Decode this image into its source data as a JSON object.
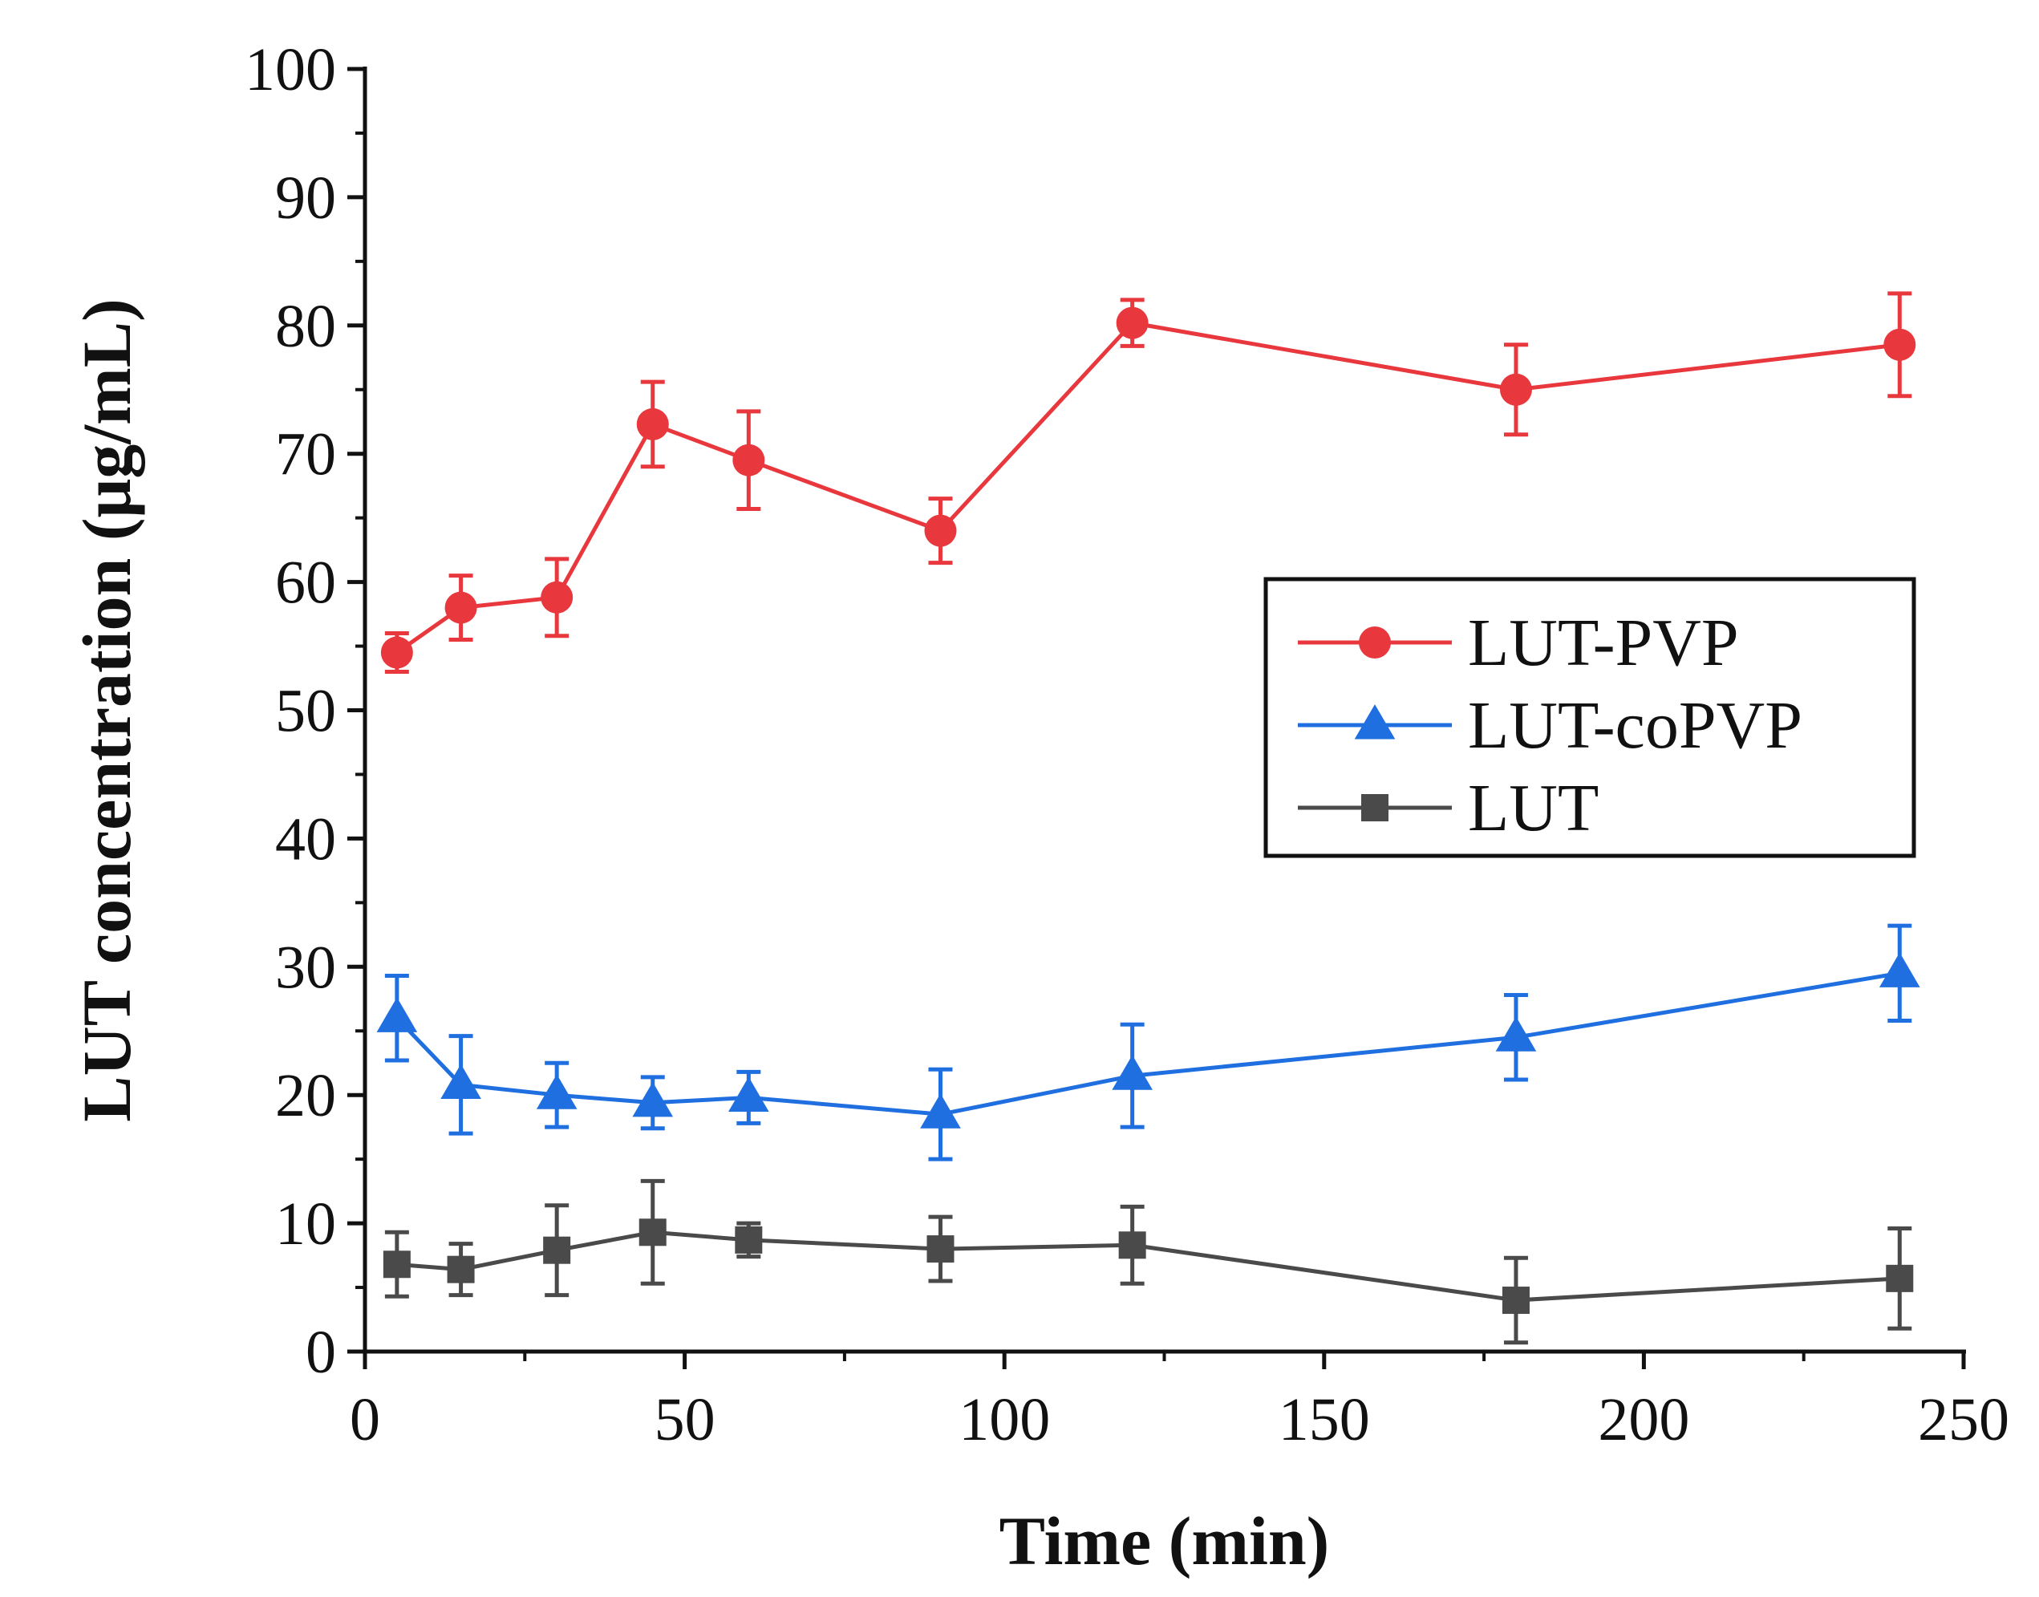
{
  "chart_data": {
    "type": "line",
    "title": "",
    "xlabel": "Time (min)",
    "ylabel": "LUT concentration (μg/mL)",
    "xlim": [
      0,
      250
    ],
    "ylim": [
      0,
      100
    ],
    "xticks": [
      0,
      50,
      100,
      150,
      200,
      250
    ],
    "yticks": [
      0,
      10,
      20,
      30,
      40,
      50,
      60,
      70,
      80,
      90,
      100
    ],
    "x": [
      5,
      15,
      30,
      45,
      60,
      90,
      120,
      180,
      240
    ],
    "legend_position": "right-middle",
    "series": [
      {
        "name": "LUT-PVP",
        "color": "#e8383d",
        "marker": "circle",
        "values": [
          54.5,
          58.0,
          58.8,
          72.3,
          69.5,
          64.0,
          80.2,
          75.0,
          78.5
        ],
        "errors": [
          1.5,
          2.5,
          3.0,
          3.3,
          3.8,
          2.5,
          1.8,
          3.5,
          4.0
        ]
      },
      {
        "name": "LUT-coPVP",
        "color": "#1f6fe0",
        "marker": "triangle",
        "values": [
          26.0,
          20.8,
          20.0,
          19.4,
          19.8,
          18.5,
          21.5,
          24.5,
          29.5
        ],
        "errors": [
          3.3,
          3.8,
          2.5,
          2.0,
          2.0,
          3.5,
          4.0,
          3.3,
          3.7
        ]
      },
      {
        "name": "LUT",
        "color": "#4a4a4a",
        "marker": "square",
        "values": [
          6.8,
          6.4,
          7.9,
          9.3,
          8.7,
          8.0,
          8.3,
          4.0,
          5.7
        ],
        "errors": [
          2.5,
          2.0,
          3.5,
          4.0,
          1.3,
          2.5,
          3.0,
          3.3,
          3.9
        ]
      }
    ]
  }
}
